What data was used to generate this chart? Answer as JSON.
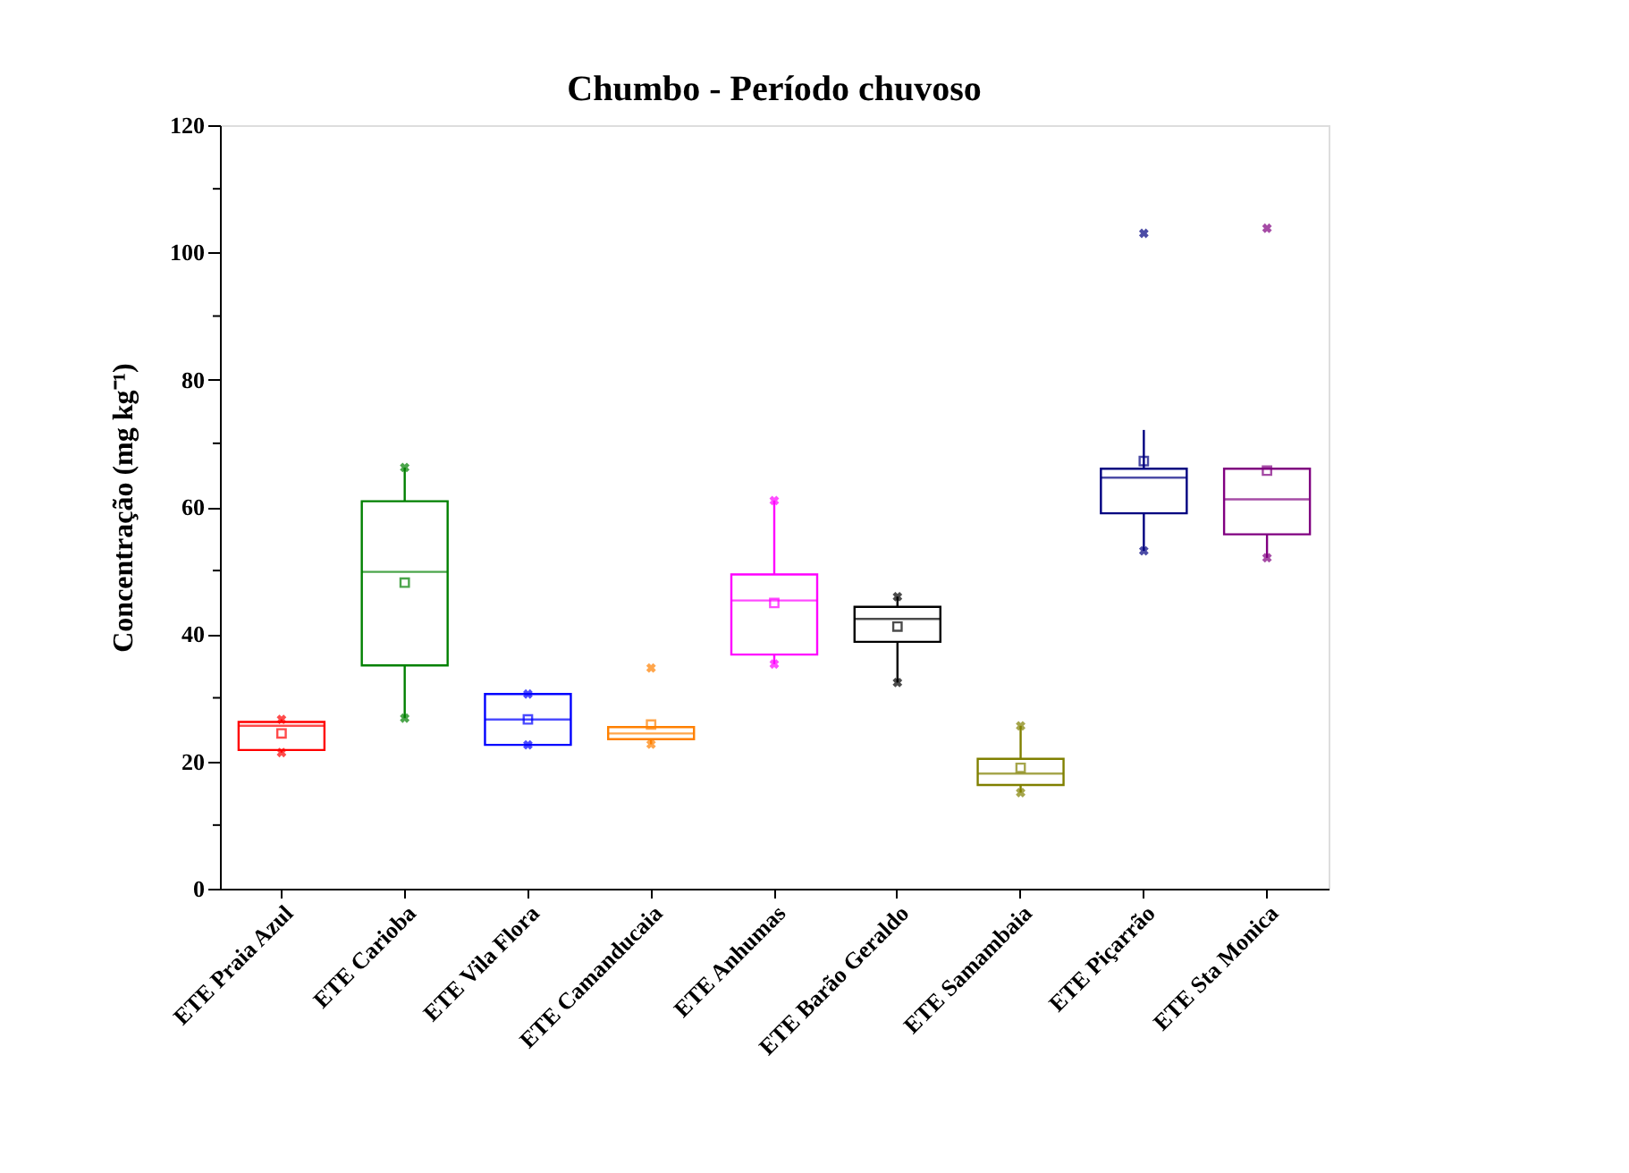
{
  "chart_data": {
    "type": "box",
    "title": "Chumbo - Período chuvoso",
    "ylabel": "Concentração (mg kg⁻¹)",
    "categories": [
      "ETE Praia Azul",
      "ETE Carioba",
      "ETE Vila Flora",
      "ETE Camanducaia",
      "ETE Anhumas",
      "ETE Barão Geraldo",
      "ETE Samambaia",
      "ETE Piçarrão",
      "ETE Sta Monica"
    ],
    "colors": [
      "#ff0000",
      "#008000",
      "#0000ff",
      "#ff8000",
      "#ff00ff",
      "#000000",
      "#808000",
      "#000080",
      "#800080"
    ],
    "boxes": [
      {
        "low": 21.4,
        "q1": 21.8,
        "median": 25.6,
        "q3": 26.2,
        "high": 26.6,
        "mean": 24.4,
        "outliers": [
          21.4,
          26.6
        ]
      },
      {
        "low": 26.8,
        "q1": 35.1,
        "median": 49.8,
        "q3": 60.9,
        "high": 66.2,
        "mean": 48.1,
        "outliers": [
          26.8,
          66.2
        ]
      },
      {
        "low": 22.6,
        "q1": 22.6,
        "median": 26.6,
        "q3": 30.6,
        "high": 30.6,
        "mean": 26.6,
        "outliers": [
          22.6,
          30.6
        ]
      },
      {
        "low": 22.7,
        "q1": 23.5,
        "median": 24.4,
        "q3": 25.4,
        "high": 25.4,
        "mean": 25.8,
        "outliers": [
          22.7,
          34.7
        ]
      },
      {
        "low": 35.3,
        "q1": 36.8,
        "median": 45.3,
        "q3": 49.4,
        "high": 61.0,
        "mean": 44.9,
        "outliers": [
          35.3,
          61.0
        ]
      },
      {
        "low": 32.4,
        "q1": 38.8,
        "median": 42.4,
        "q3": 44.3,
        "high": 45.9,
        "mean": 41.2,
        "outliers": [
          32.4,
          45.9
        ]
      },
      {
        "low": 15.1,
        "q1": 16.3,
        "median": 18.1,
        "q3": 20.4,
        "high": 25.6,
        "mean": 19.0,
        "outliers": [
          15.1,
          25.6
        ]
      },
      {
        "low": 53.1,
        "q1": 59.0,
        "median": 64.6,
        "q3": 66.0,
        "high": 72.1,
        "mean": 67.2,
        "outliers": [
          53.1,
          103.0
        ]
      },
      {
        "low": 52.0,
        "q1": 55.7,
        "median": 61.2,
        "q3": 66.0,
        "high": 66.0,
        "mean": 65.7,
        "outliers": [
          52.0,
          103.8
        ]
      }
    ],
    "ylim": [
      0,
      120
    ],
    "yticks": [
      0,
      {
        "value": 10,
        "label": null
      },
      20,
      {
        "value": 30,
        "label": null
      },
      40,
      {
        "value": 50,
        "label": null
      },
      60,
      {
        "value": 70,
        "label": null
      },
      80,
      {
        "value": 90,
        "label": null
      },
      100,
      {
        "value": 110,
        "label": null
      },
      120
    ],
    "grid": false
  }
}
